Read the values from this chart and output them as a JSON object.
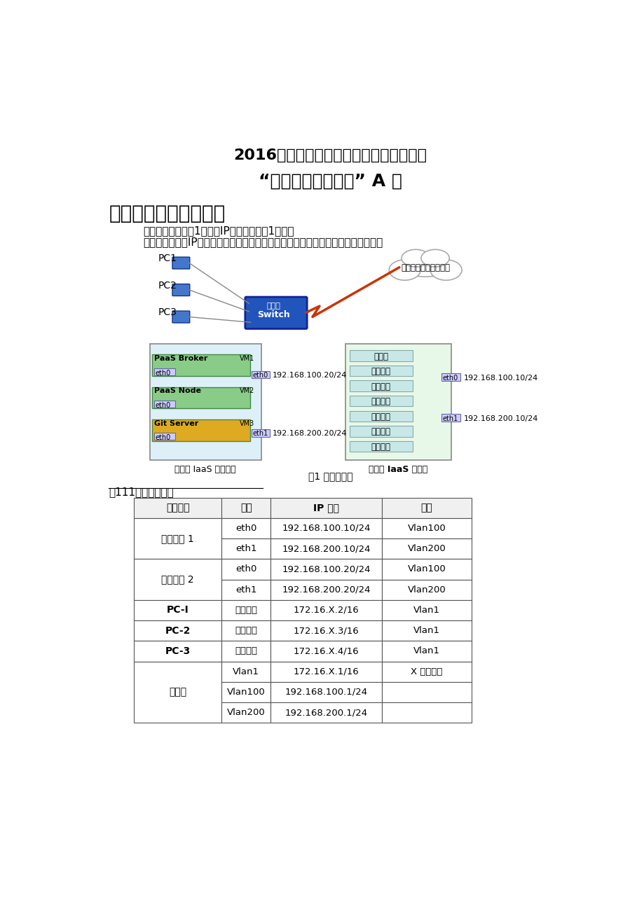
{
  "title1": "2016年全国职业院校技能大赛（高职组）",
  "title2": "“云计算技术与应用” A 卷",
  "section": "第一局部：云平台架构",
  "intro1": "赛项系统架构如图1所示，IP地址规划如表1所示。",
  "intro2": "依据架构构图及IP地址规划表，检查硬件连线及网络设备配置，确保网络连接正常。",
  "fig_caption": "图1 系统架构图",
  "table_title": "表111）地址规划表",
  "table_headers": [
    "设备名称",
    "接口",
    "IP 地址",
    "说明"
  ],
  "table_rows": [
    [
      "云效劳器 1",
      "eth0",
      "192.168.100.10/24",
      "Vlan100"
    ],
    [
      "云效劳器 1",
      "eth1",
      "192.168.200.10/24",
      "Vlan200"
    ],
    [
      "云效劳器 2",
      "eth0",
      "192.168.100.20/24",
      "Vlan100"
    ],
    [
      "云效劳器 2",
      "eth1",
      "192.168.200.20/24",
      "Vlan200"
    ],
    [
      "PC-I",
      "本地连接",
      "172.16.X.2/16",
      "Vlan1"
    ],
    [
      "PC-2",
      "本地连接",
      "172.16.X.3/16",
      "Vlan1"
    ],
    [
      "PC-3",
      "本地连接",
      "172.16.X.4/16",
      "Vlan1"
    ],
    [
      "交换机",
      "Vlan1",
      "172.16.X.1/16",
      "X 为考位号"
    ],
    [
      "交换机",
      "Vlan100",
      "192.168.100.1/24",
      ""
    ],
    [
      "交换机",
      "Vlan200",
      "192.168.200.1/24",
      ""
    ]
  ],
  "device_groups": [
    {
      "name": "云效劳器 1",
      "bold": false,
      "rows": [
        0,
        1
      ]
    },
    {
      "name": "云效劳器 2",
      "bold": false,
      "rows": [
        2,
        3
      ]
    },
    {
      "name": "PC-I",
      "bold": true,
      "rows": [
        4
      ]
    },
    {
      "name": "PC-2",
      "bold": true,
      "rows": [
        5
      ]
    },
    {
      "name": "PC-3",
      "bold": true,
      "rows": [
        6
      ]
    },
    {
      "name": "交换机",
      "bold": false,
      "rows": [
        7,
        8,
        9
      ]
    }
  ],
  "bg_color": "#ffffff",
  "text_color": "#000000"
}
